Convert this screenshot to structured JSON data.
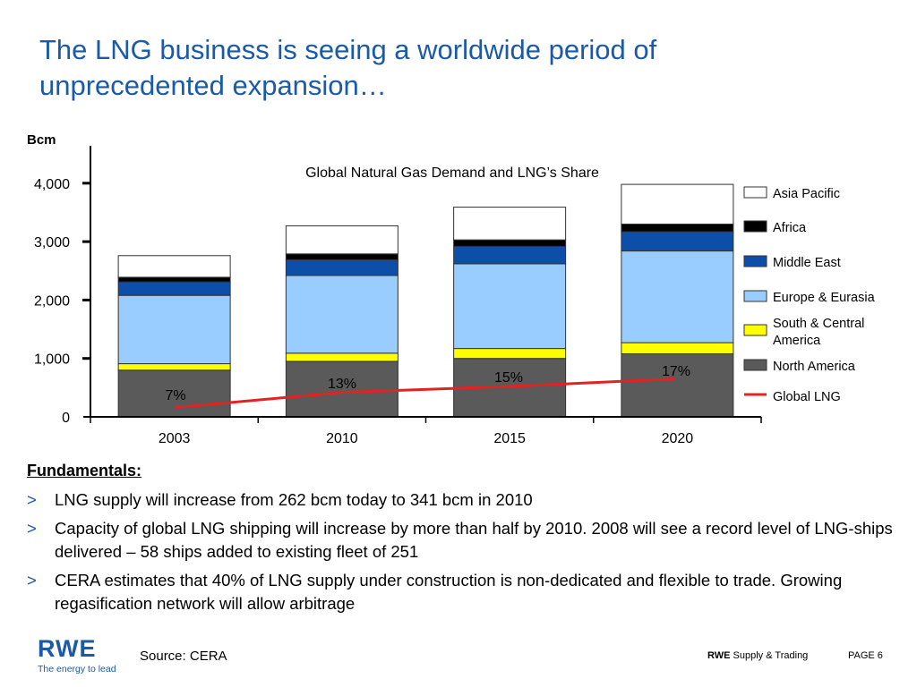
{
  "slide": {
    "title": "The LNG business is seeing a worldwide period of unprecedented expansion…",
    "fundamentals_heading": "Fundamentals:",
    "bullet_marker": ">",
    "bullets": [
      "LNG supply will increase from 262 bcm today to 341 bcm in 2010",
      "Capacity of global LNG shipping will increase by more than half by 2010. 2008 will see a record level of LNG-ships delivered – 58 ships added to existing fleet of 251",
      "CERA estimates that 40% of LNG supply under construction is non-dedicated and flexible to trade. Growing regasification network will allow arbitrage"
    ],
    "source": "Source: CERA",
    "footer": {
      "company_bold": "RWE",
      "company_rest": "Supply & Trading",
      "page": "PAGE 6"
    },
    "logo": {
      "word": "RWE",
      "tagline": "The energy to lead"
    }
  },
  "chart_data": {
    "type": "bar",
    "stacked": true,
    "title": "Global Natural Gas Demand and LNG’s Share",
    "ylabel": "Bcm",
    "xlabel": "",
    "ylim": [
      0,
      4000
    ],
    "yticks": [
      0,
      1000,
      2000,
      3000,
      4000
    ],
    "ytick_labels": [
      "0",
      "1,000",
      "2,000",
      "3,000",
      "4,000"
    ],
    "categories": [
      "2003",
      "2010",
      "2015",
      "2020"
    ],
    "series": [
      {
        "name": "North America",
        "color": "#5a5a5a",
        "values": [
          800,
          950,
          1000,
          1080
        ]
      },
      {
        "name": "South & Central America",
        "color": "#ffff00",
        "values": [
          110,
          140,
          170,
          190
        ]
      },
      {
        "name": "Europe & Eurasia",
        "color": "#99ccff",
        "values": [
          1170,
          1330,
          1450,
          1570
        ]
      },
      {
        "name": "Middle East",
        "color": "#0d4fa8",
        "values": [
          230,
          270,
          300,
          330
        ]
      },
      {
        "name": "Africa",
        "color": "#000000",
        "values": [
          80,
          100,
          110,
          130
        ]
      },
      {
        "name": "Asia Pacific",
        "color": "#ffffff",
        "values": [
          370,
          480,
          560,
          680
        ]
      }
    ],
    "line": {
      "name": "Global LNG",
      "color": "#e32222",
      "values": [
        160,
        420,
        520,
        650
      ],
      "labels": [
        "7%",
        "13%",
        "15%",
        "17%"
      ]
    },
    "legend": {
      "position": "right"
    }
  }
}
